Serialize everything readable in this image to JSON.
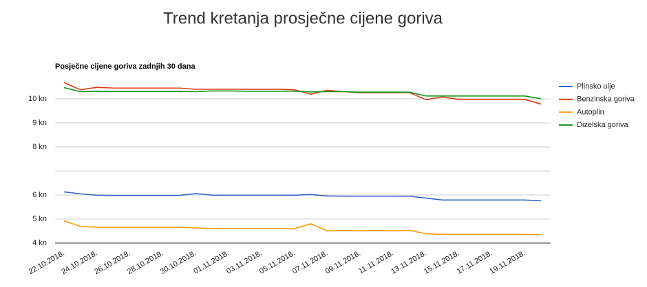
{
  "chart_data": {
    "type": "line",
    "title": "Trend kretanja prosječne cijene goriva",
    "subtitle": "Posječne cijene goriva zadnjih 30 dana",
    "categories": [
      "22.10.2018.",
      null,
      "24.10.2018.",
      null,
      "26.10.2018.",
      null,
      "28.10.2018.",
      null,
      "30.10.2018.",
      null,
      "01.11.2018.",
      null,
      "03.11.2018.",
      null,
      "05.11.2018.",
      null,
      "07.11.2018.",
      null,
      "09.11.2018.",
      null,
      "11.11.2018.",
      null,
      "13.11.2018.",
      null,
      "15.11.2018.",
      null,
      "17.11.2018.",
      null,
      "19.11.2018.",
      null
    ],
    "series": [
      {
        "name": "Plinsko ulje",
        "color": "#3366cc",
        "values": [
          6.13,
          6.05,
          5.99,
          5.98,
          5.98,
          5.98,
          5.98,
          5.98,
          6.06,
          5.99,
          5.99,
          5.99,
          5.99,
          5.99,
          5.99,
          6.02,
          5.96,
          5.95,
          5.95,
          5.95,
          5.95,
          5.95,
          5.87,
          5.79,
          5.79,
          5.79,
          5.79,
          5.79,
          5.79,
          5.76
        ]
      },
      {
        "name": "Benzinska goriva",
        "color": "#dc3912",
        "values": [
          10.68,
          10.38,
          10.48,
          10.45,
          10.45,
          10.45,
          10.45,
          10.45,
          10.4,
          10.4,
          10.4,
          10.4,
          10.4,
          10.4,
          10.38,
          10.19,
          10.36,
          10.3,
          10.26,
          10.26,
          10.26,
          10.26,
          9.97,
          10.08,
          9.98,
          9.98,
          9.98,
          9.98,
          9.98,
          9.78
        ]
      },
      {
        "name": "Autoplin",
        "color": "#ff9900",
        "values": [
          4.92,
          4.69,
          4.66,
          4.66,
          4.66,
          4.66,
          4.66,
          4.66,
          4.63,
          4.6,
          4.6,
          4.6,
          4.6,
          4.6,
          4.6,
          4.8,
          4.51,
          4.52,
          4.51,
          4.52,
          4.51,
          4.53,
          4.39,
          4.36,
          4.36,
          4.36,
          4.36,
          4.36,
          4.36,
          4.35
        ]
      },
      {
        "name": "Dizelska goriva",
        "color": "#109618",
        "values": [
          10.47,
          10.3,
          10.31,
          10.31,
          10.31,
          10.31,
          10.31,
          10.31,
          10.3,
          10.33,
          10.33,
          10.32,
          10.32,
          10.32,
          10.32,
          10.29,
          10.3,
          10.3,
          10.28,
          10.28,
          10.28,
          10.28,
          10.12,
          10.12,
          10.12,
          10.12,
          10.12,
          10.12,
          10.12,
          10.01
        ]
      }
    ],
    "ylim": [
      4,
      10.8
    ],
    "yticks": [
      {
        "value": 4,
        "label": "4 kn"
      },
      {
        "value": 5,
        "label": "5 kn"
      },
      {
        "value": 6,
        "label": "6 kn"
      },
      {
        "value": 7
      },
      {
        "value": 8,
        "label": "8 kn"
      },
      {
        "value": 9,
        "label": "9 kn"
      },
      {
        "value": 10,
        "label": "10 kn"
      }
    ],
    "grid": true,
    "legend": "right"
  }
}
